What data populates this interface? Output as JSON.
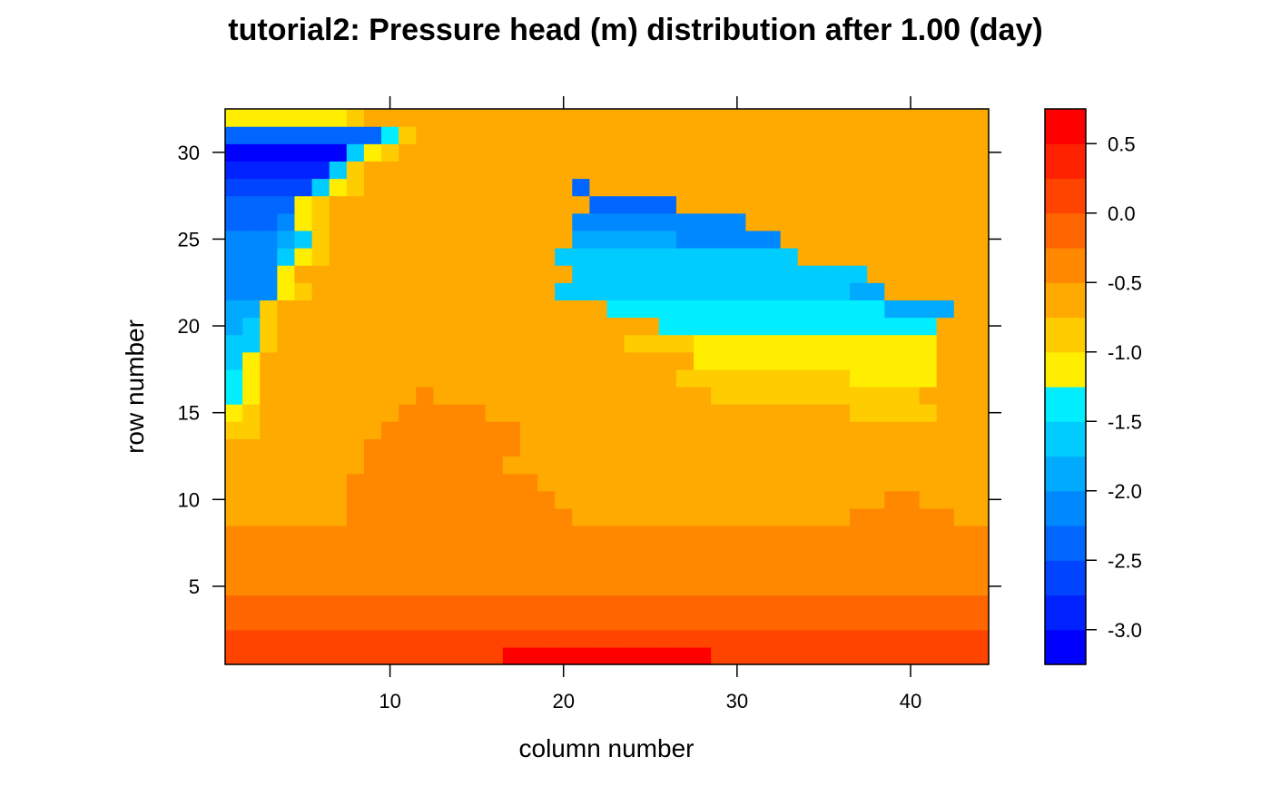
{
  "chart_data": {
    "type": "heatmap",
    "title": "tutorial2: Pressure head (m) distribution after 1.00 (day)",
    "xlabel": "column number",
    "ylabel": "row number",
    "xlim": [
      0.5,
      44.5
    ],
    "ylim": [
      0.5,
      32.5
    ],
    "n_cols": 44,
    "n_rows": 32,
    "x_ticks": [
      10,
      20,
      30,
      40
    ],
    "y_ticks": [
      5,
      10,
      15,
      20,
      25,
      30
    ],
    "x_tick_labels": [
      "10",
      "20",
      "30",
      "40"
    ],
    "y_tick_labels": [
      "5",
      "10",
      "15",
      "20",
      "25",
      "30"
    ],
    "colorbar": {
      "min": -3.25,
      "max": 0.75,
      "step": 0.25,
      "ticks": [
        0.5,
        0.0,
        -0.5,
        -1.0,
        -1.5,
        -2.0,
        -2.5,
        -3.0
      ],
      "tick_labels": [
        "0.5",
        "0.0",
        "-0.5",
        "-1.0",
        "-1.5",
        "-2.0",
        "-2.5",
        "-3.0"
      ],
      "colors": [
        "#0000FF",
        "#0022FF",
        "#0044FF",
        "#0066FF",
        "#0088FF",
        "#00AAFF",
        "#00CCFF",
        "#00EEFF",
        "#FFEE00",
        "#FFCC00",
        "#FFAA00",
        "#FF8800",
        "#FF6600",
        "#FF4400",
        "#FF2200",
        "#FF0000"
      ]
    },
    "level_codes": "A=-0.625 B=-1.125 C=-0.875 D=-3.125 E=-2.875 F=-2.625 G=-2.375 H=-2.125 I=-1.875 J=-1.625 K=-1.375 L=-0.375 M=-0.125 N=0.125 O=0.375 P=0.625",
    "rows_bottom_to_top": [
      "NNNNNNNNNNNNNNNNPPPPPPPPPPPPNNNNNNNNNNNNNNNN",
      "NNNNNNNNNNNNNNNNNNNNNNNNNNNNNNNNNNNNNNNNNNNN",
      "MMMMMMMMMMMMMMMMMMMMMMMMMMMMMMMMMMMMMMMMMMMM",
      "MMMMMMMMMMMMMMMMMMMMMMMMMMMMMMMMMMMMMMMMMMMM",
      "LLLLLLLLLLLLLLLLLLLLLLLLLLLLLLLLLLLLLLLLLLLL",
      "LLLLLLLLLLLLLLLLLLLLLLLLLLLLLLLLLLLLLLLLLLLL",
      "LLLLLLLLLLLLLLLLLLLLLLLLLLLLLLLLLLLLLLLLLLLL",
      "LLLLLLLLLLLLLLLLLLLLLLLLLLLLLLLLLLLLLLLLLLLL",
      "AAAAAAALLLLLLLLLLLLLAAAAAAAAAAAAAAAALLLLLLAA",
      "AAAAAAALLLLLLLLLLLLAAAAAAAAAAAAAAAAAAALLAAAA",
      "AAAAAAALLLLLLLLLLLAAAAAAAAAAAAAAAAAAAAAAAAAA",
      "AAAAAAAALLLLLLLLAAAAAAAAAAAAAAAAAAAAAAAAAAAA",
      "AAAAAAAALLLLLLLLLAAAAAAAAAAAAAAAAAAAAAAAAAAA",
      "CCAAAAAAALLLLLLLLAAAAAAAAAAAAAAAAAAAAAAAAAAA",
      "BCAAAAAAAALLLLLAAAAAAAAAAAAAAAAAAAAACCCCCAAA",
      "KBAAAAAAAAALAAAAAAAAAAAAAAAACCCCCCCCCCCCAAAA",
      "KBAAAAAAAAAAAAAAAAAAAAAAAACCCCCCCCCCBBBBBAAA",
      "JBAAAAAAAAAAAAAAAAAAAAAAAAABBBBBBBBBBBBBBAAA",
      "JJCAAAAAAAAAAAAAAAAAAAACCCCBBBBBBBBBBBBBBAAA",
      "IJCAAAAAAAAAAAAAAAAAAAAAAKKKKKKKKKKKKKKKKAAA",
      "IICAAAAAAAAAAAAAAAAAAAKKKKKKKKKKKKKKKKIIIIAA",
      "HHHBCAAAAAAAAAAAAAAJJJJJJJJJJJJJJJJJIIAAAAAA",
      "HHHBAAAAAAAAAAAAAAAAJJJJJJJJJJJJJJJJJAAAAAAA",
      "HHHJBCAAAAAAAAAAAAAJJJJJJJJJJJJJJAAAAAAAAAAA",
      "HHHIJCAAAAAAAAAAAAAAIIIIIIHHHHHHAAAAAAAAAAAA",
      "GGGHBCAAAAAAAAAAAAAAHHHHHHHHHHAAAAAAAAAAAAAA",
      "GGGGBCAAAAAAAAAAAAAAAGGGGGAAAAAAAAAAAAAAAAAA",
      "FFFFFJBCAAAAAAAAAAAAGAAAAAAAAAAAAAAAAAAAAAAA",
      "EEEEEEJCAAAAAAAAAAAAAAAAAAAAAAAAAAAAAAAAAAAA",
      "DDDDDDDJBCAAAAAAAAAAAAAAAAAAAAAAAAAAAAAAAAAA",
      "GGGGGGGGGKCAAAAAAAAAAAAAAAAAAAAAAAAAAAAAAAAA",
      "BBBBBBBCAAAAAAAAAAAAAAAAAAAAAAAAAAAAAAAAAAAA"
    ]
  }
}
